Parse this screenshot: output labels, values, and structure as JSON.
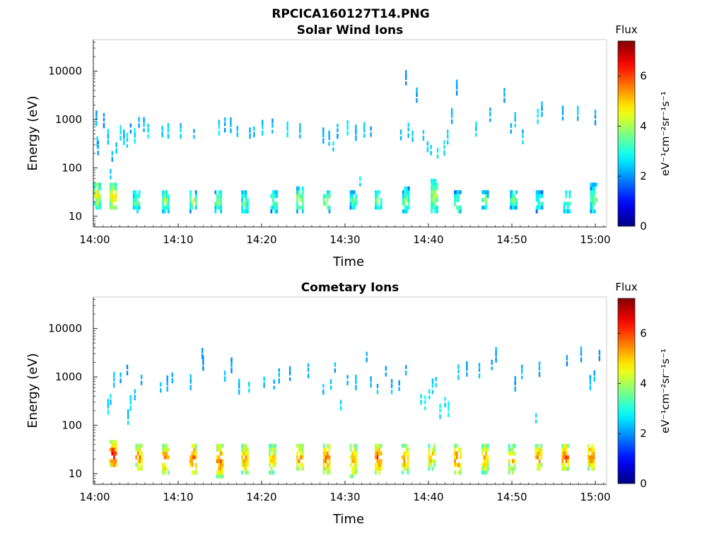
{
  "figure": {
    "title": "RPCICA160127T14.PNG"
  },
  "chart_data": [
    {
      "type": "heatmap",
      "title": "Solar Wind Ions",
      "xlabel": "Time",
      "ylabel": "Energy (eV)",
      "x_ticks": [
        "14:00",
        "14:10",
        "14:20",
        "14:30",
        "14:40",
        "14:50",
        "15:00"
      ],
      "xlim_minutes": [
        0,
        61.5
      ],
      "y_ticks": [
        {
          "value": 10,
          "label": "10"
        },
        {
          "value": 100,
          "label": "100"
        },
        {
          "value": 1000,
          "label": "1000"
        },
        {
          "value": 10000,
          "label": "10000"
        }
      ],
      "ylim": [
        6,
        45000
      ],
      "y_scale": "log",
      "colorbar": {
        "title": "Flux",
        "label": "eV⁻¹cm⁻²sr⁻¹s⁻¹",
        "ticks": [
          0,
          2,
          4,
          6
        ],
        "range": [
          0,
          7.4
        ],
        "colormap": "jet"
      },
      "low_energy_bursts": [
        {
          "t": 0.3,
          "e": [
            16,
            45
          ],
          "v": 4.6
        },
        {
          "t": 2.2,
          "e": [
            14,
            48
          ],
          "v": 5.0
        },
        {
          "t": 5.0,
          "e": [
            12,
            32
          ],
          "v": 3.8
        },
        {
          "t": 8.5,
          "e": [
            13,
            32
          ],
          "v": 4.0
        },
        {
          "t": 11.8,
          "e": [
            13,
            32
          ],
          "v": 3.9
        },
        {
          "t": 14.8,
          "e": [
            12,
            33
          ],
          "v": 3.8
        },
        {
          "t": 18.0,
          "e": [
            12,
            30
          ],
          "v": 3.6
        },
        {
          "t": 21.5,
          "e": [
            13,
            32
          ],
          "v": 3.7
        },
        {
          "t": 24.6,
          "e": [
            12,
            38
          ],
          "v": 4.0
        },
        {
          "t": 27.8,
          "e": [
            13,
            32
          ],
          "v": 4.1
        },
        {
          "t": 31.0,
          "e": [
            15,
            30
          ],
          "v": 3.5
        },
        {
          "t": 34.0,
          "e": [
            14,
            32
          ],
          "v": 3.9
        },
        {
          "t": 37.3,
          "e": [
            12,
            35
          ],
          "v": 3.8
        },
        {
          "t": 40.7,
          "e": [
            13,
            55
          ],
          "v": 4.2
        },
        {
          "t": 43.5,
          "e": [
            12,
            30
          ],
          "v": 3.7
        },
        {
          "t": 46.8,
          "e": [
            15,
            32
          ],
          "v": 3.7
        },
        {
          "t": 50.2,
          "e": [
            15,
            32
          ],
          "v": 3.6
        },
        {
          "t": 53.3,
          "e": [
            12,
            32
          ],
          "v": 3.4
        },
        {
          "t": 56.6,
          "e": [
            12,
            32
          ],
          "v": 3.6
        },
        {
          "t": 59.8,
          "e": [
            12,
            42
          ],
          "v": 3.7
        }
      ],
      "scatter_points": [
        [
          0.1,
          1100,
          2.2
        ],
        [
          0.2,
          400,
          2.5
        ],
        [
          0.3,
          270,
          2.0
        ],
        [
          1.0,
          1000,
          2.0
        ],
        [
          1.5,
          450,
          2.4
        ],
        [
          1.8,
          85,
          2.6
        ],
        [
          2.0,
          200,
          2.3
        ],
        [
          2.5,
          300,
          2.5
        ],
        [
          3.0,
          550,
          2.7
        ],
        [
          3.4,
          450,
          2.3
        ],
        [
          3.8,
          380,
          2.5
        ],
        [
          4.2,
          750,
          2.1
        ],
        [
          4.7,
          480,
          2.6
        ],
        [
          5.2,
          1000,
          2.2
        ],
        [
          5.8,
          800,
          2.3
        ],
        [
          6.3,
          600,
          2.7
        ],
        [
          8.0,
          650,
          2.2
        ],
        [
          8.7,
          600,
          2.5
        ],
        [
          10.2,
          600,
          2.4
        ],
        [
          11.8,
          580,
          2.2
        ],
        [
          14.8,
          700,
          2.6
        ],
        [
          15.5,
          800,
          2.1
        ],
        [
          16.2,
          780,
          2.4
        ],
        [
          17.0,
          650,
          2.5
        ],
        [
          18.5,
          600,
          2.3
        ],
        [
          19.0,
          650,
          2.2
        ],
        [
          20.0,
          700,
          2.4
        ],
        [
          21.2,
          750,
          2.2
        ],
        [
          23.0,
          650,
          2.5
        ],
        [
          24.5,
          600,
          2.2
        ],
        [
          27.3,
          480,
          2.3
        ],
        [
          28.0,
          420,
          2.4
        ],
        [
          28.5,
          320,
          2.6
        ],
        [
          29.0,
          600,
          2.2
        ],
        [
          30.2,
          700,
          2.5
        ],
        [
          31.2,
          550,
          2.3
        ],
        [
          31.7,
          60,
          2.6
        ],
        [
          32.2,
          620,
          2.4
        ],
        [
          33.0,
          650,
          2.2
        ],
        [
          36.6,
          550,
          2.3
        ],
        [
          37.2,
          7500,
          2.0
        ],
        [
          37.5,
          620,
          2.4
        ],
        [
          38.0,
          520,
          2.5
        ],
        [
          38.5,
          3300,
          2.1
        ],
        [
          39.3,
          550,
          2.4
        ],
        [
          39.8,
          320,
          2.5
        ],
        [
          40.2,
          270,
          2.2
        ],
        [
          41.0,
          230,
          2.4
        ],
        [
          41.8,
          270,
          2.6
        ],
        [
          42.2,
          450,
          2.3
        ],
        [
          42.7,
          1200,
          2.2
        ],
        [
          43.3,
          4700,
          2.1
        ],
        [
          45.6,
          650,
          2.5
        ],
        [
          47.3,
          1300,
          2.3
        ],
        [
          49.0,
          3300,
          2.1
        ],
        [
          49.8,
          750,
          2.2
        ],
        [
          50.3,
          1000,
          2.4
        ],
        [
          51.2,
          450,
          2.3
        ],
        [
          53.0,
          1200,
          2.5
        ],
        [
          53.5,
          1700,
          2.2
        ],
        [
          56.0,
          1400,
          2.1
        ],
        [
          57.8,
          1400,
          2.3
        ],
        [
          59.9,
          1150,
          2.2
        ]
      ]
    },
    {
      "type": "heatmap",
      "title": "Cometary Ions",
      "xlabel": "Time",
      "ylabel": "Energy (eV)",
      "x_ticks": [
        "14:00",
        "14:10",
        "14:20",
        "14:30",
        "14:40",
        "14:50",
        "15:00"
      ],
      "xlim_minutes": [
        0,
        61.5
      ],
      "y_ticks": [
        {
          "value": 10,
          "label": "10"
        },
        {
          "value": 100,
          "label": "100"
        },
        {
          "value": 1000,
          "label": "1000"
        },
        {
          "value": 10000,
          "label": "10000"
        }
      ],
      "ylim": [
        6,
        45000
      ],
      "y_scale": "log",
      "colorbar": {
        "title": "Flux",
        "label": "eV⁻¹cm⁻²sr⁻¹s⁻¹",
        "ticks": [
          0,
          2,
          4,
          6
        ],
        "range": [
          0,
          7.4
        ],
        "colormap": "jet"
      },
      "low_energy_bursts": [
        {
          "t": 2.2,
          "e": [
            14,
            42
          ],
          "v": 6.6
        },
        {
          "t": 5.3,
          "e": [
            12,
            38
          ],
          "v": 5.6
        },
        {
          "t": 8.5,
          "e": [
            11,
            38
          ],
          "v": 5.7
        },
        {
          "t": 11.8,
          "e": [
            11,
            38
          ],
          "v": 5.9
        },
        {
          "t": 15.0,
          "e": [
            9,
            38
          ],
          "v": 5.8
        },
        {
          "t": 18.0,
          "e": [
            10,
            38
          ],
          "v": 5.4
        },
        {
          "t": 21.3,
          "e": [
            11,
            38
          ],
          "v": 5.1
        },
        {
          "t": 24.6,
          "e": [
            12,
            38
          ],
          "v": 5.6
        },
        {
          "t": 27.8,
          "e": [
            11,
            40
          ],
          "v": 5.8
        },
        {
          "t": 31.0,
          "e": [
            9,
            38
          ],
          "v": 5.4
        },
        {
          "t": 34.0,
          "e": [
            11,
            40
          ],
          "v": 5.9
        },
        {
          "t": 37.2,
          "e": [
            11,
            38
          ],
          "v": 5.5
        },
        {
          "t": 40.4,
          "e": [
            12,
            40
          ],
          "v": 5.3
        },
        {
          "t": 43.5,
          "e": [
            10,
            38
          ],
          "v": 5.8
        },
        {
          "t": 46.8,
          "e": [
            11,
            38
          ],
          "v": 5.3
        },
        {
          "t": 50.0,
          "e": [
            11,
            38
          ],
          "v": 5.2
        },
        {
          "t": 53.2,
          "e": [
            12,
            40
          ],
          "v": 5.6
        },
        {
          "t": 56.4,
          "e": [
            12,
            40
          ],
          "v": 5.9
        },
        {
          "t": 59.5,
          "e": [
            12,
            40
          ],
          "v": 5.8
        }
      ],
      "scatter_points": [
        [
          1.5,
          250,
          2.6
        ],
        [
          1.8,
          400,
          2.5
        ],
        [
          2.2,
          900,
          2.3
        ],
        [
          3.0,
          1100,
          2.2
        ],
        [
          3.8,
          1600,
          2.1
        ],
        [
          3.9,
          150,
          2.5
        ],
        [
          4.2,
          300,
          2.4
        ],
        [
          4.7,
          500,
          2.3
        ],
        [
          5.5,
          1000,
          2.2
        ],
        [
          7.8,
          700,
          2.3
        ],
        [
          8.6,
          750,
          2.2
        ],
        [
          9.2,
          1100,
          2.1
        ],
        [
          11.4,
          800,
          2.2
        ],
        [
          12.8,
          3500,
          2.1
        ],
        [
          12.9,
          2000,
          2.0
        ],
        [
          15.5,
          1200,
          2.2
        ],
        [
          16.3,
          1800,
          2.1
        ],
        [
          17.2,
          650,
          2.3
        ],
        [
          18.4,
          700,
          2.4
        ],
        [
          20.2,
          900,
          2.3
        ],
        [
          21.4,
          800,
          2.2
        ],
        [
          22.0,
          1100,
          2.3
        ],
        [
          23.3,
          1200,
          2.1
        ],
        [
          25.5,
          1400,
          2.2
        ],
        [
          27.3,
          650,
          2.3
        ],
        [
          28.2,
          800,
          2.4
        ],
        [
          28.7,
          1800,
          2.2
        ],
        [
          29.4,
          300,
          2.5
        ],
        [
          30.2,
          1000,
          2.3
        ],
        [
          31.2,
          800,
          2.2
        ],
        [
          32.5,
          3000,
          2.1
        ],
        [
          33.0,
          900,
          2.2
        ],
        [
          33.8,
          650,
          2.3
        ],
        [
          34.8,
          1500,
          2.2
        ],
        [
          35.5,
          650,
          2.3
        ],
        [
          36.4,
          750,
          2.2
        ],
        [
          37.2,
          1600,
          2.1
        ],
        [
          39.0,
          400,
          2.6
        ],
        [
          39.5,
          300,
          2.8
        ],
        [
          40.0,
          500,
          2.5
        ],
        [
          40.4,
          650,
          2.4
        ],
        [
          40.8,
          900,
          2.6
        ],
        [
          41.3,
          200,
          2.7
        ],
        [
          41.9,
          350,
          2.6
        ],
        [
          42.3,
          220,
          2.8
        ],
        [
          43.5,
          1300,
          2.3
        ],
        [
          44.5,
          1500,
          2.2
        ],
        [
          46.0,
          1400,
          2.3
        ],
        [
          47.5,
          2000,
          2.2
        ],
        [
          48.0,
          3000,
          2.1
        ],
        [
          50.3,
          750,
          2.1
        ],
        [
          51.1,
          1300,
          2.2
        ],
        [
          52.8,
          160,
          2.5
        ],
        [
          53.2,
          1500,
          2.2
        ],
        [
          56.5,
          2500,
          2.1
        ],
        [
          58.2,
          3000,
          2.2
        ],
        [
          59.3,
          800,
          2.2
        ],
        [
          59.8,
          1200,
          2.3
        ],
        [
          60.4,
          3200,
          2.1
        ]
      ]
    }
  ]
}
